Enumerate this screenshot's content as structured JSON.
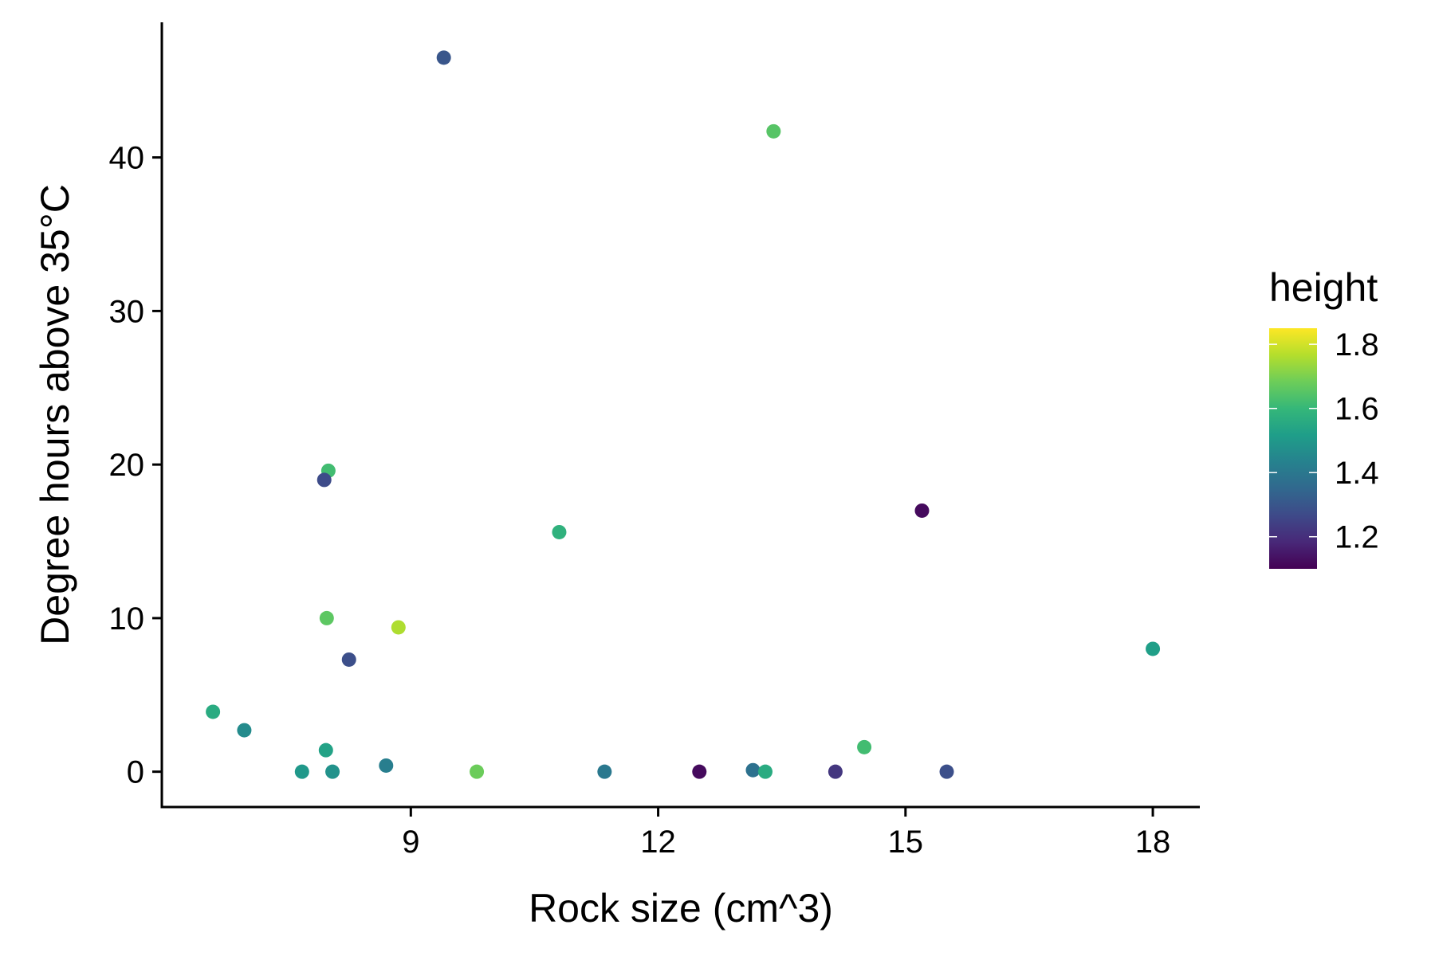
{
  "chart_data": {
    "type": "scatter",
    "xlabel": "Rock size (cm^3)",
    "ylabel": "Degree hours above 35°C",
    "x_ticks": [
      9,
      12,
      15,
      18
    ],
    "y_ticks": [
      0,
      10,
      20,
      30,
      40
    ],
    "x_tick_labels": [
      "9",
      "12",
      "15",
      "18"
    ],
    "y_tick_labels": [
      "0",
      "10",
      "20",
      "30",
      "40"
    ],
    "xlim": [
      5.98,
      18.57
    ],
    "ylim": [
      -2.3,
      48.8
    ],
    "grid": false,
    "legend": {
      "title": "height",
      "type": "continuous",
      "placement": "right",
      "range": [
        1.1,
        1.85
      ],
      "ticks": [
        1.2,
        1.4,
        1.6,
        1.8
      ],
      "tick_labels": [
        "1.2",
        "1.4",
        "1.6",
        "1.8"
      ],
      "palette": [
        "#440154",
        "#482878",
        "#3E4A89",
        "#31688E",
        "#26828E",
        "#1F9E89",
        "#35B779",
        "#6DCD59",
        "#B4DE2C",
        "#FDE725"
      ]
    },
    "points": [
      {
        "x": 9.4,
        "y": 46.5,
        "height": 1.3
      },
      {
        "x": 13.4,
        "y": 41.7,
        "height": 1.65
      },
      {
        "x": 8.0,
        "y": 19.6,
        "height": 1.62
      },
      {
        "x": 7.95,
        "y": 19.0,
        "height": 1.27
      },
      {
        "x": 10.8,
        "y": 15.6,
        "height": 1.58
      },
      {
        "x": 15.2,
        "y": 17.0,
        "height": 1.12
      },
      {
        "x": 7.98,
        "y": 10.0,
        "height": 1.66
      },
      {
        "x": 8.85,
        "y": 9.4,
        "height": 1.76
      },
      {
        "x": 8.25,
        "y": 7.3,
        "height": 1.28
      },
      {
        "x": 18.0,
        "y": 8.0,
        "height": 1.52
      },
      {
        "x": 6.6,
        "y": 3.9,
        "height": 1.56
      },
      {
        "x": 6.98,
        "y": 2.7,
        "height": 1.46
      },
      {
        "x": 7.97,
        "y": 1.4,
        "height": 1.53
      },
      {
        "x": 14.5,
        "y": 1.6,
        "height": 1.62
      },
      {
        "x": 7.68,
        "y": 0.0,
        "height": 1.5
      },
      {
        "x": 8.05,
        "y": 0.0,
        "height": 1.48
      },
      {
        "x": 8.7,
        "y": 0.4,
        "height": 1.42
      },
      {
        "x": 9.8,
        "y": 0.0,
        "height": 1.68
      },
      {
        "x": 11.35,
        "y": 0.0,
        "height": 1.4
      },
      {
        "x": 12.5,
        "y": 0.0,
        "height": 1.12
      },
      {
        "x": 13.15,
        "y": 0.1,
        "height": 1.38
      },
      {
        "x": 13.3,
        "y": 0.0,
        "height": 1.56
      },
      {
        "x": 14.15,
        "y": 0.0,
        "height": 1.22
      },
      {
        "x": 15.5,
        "y": 0.0,
        "height": 1.28
      }
    ]
  }
}
